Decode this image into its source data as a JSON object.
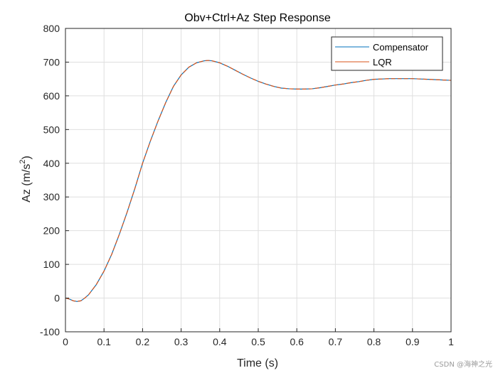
{
  "chart_data": {
    "type": "line",
    "title": "Obv+Ctrl+Az Step Response",
    "xlabel": "Time (s)",
    "ylabel_main": "Az (m/s",
    "ylabel_sup": "2",
    "ylabel_end": ")",
    "xlim": [
      0,
      1
    ],
    "ylim": [
      -100,
      800
    ],
    "xticks": [
      0,
      0.1,
      0.2,
      0.3,
      0.4,
      0.5,
      0.6,
      0.7,
      0.8,
      0.9,
      1
    ],
    "xtick_labels": [
      "0",
      "0.1",
      "0.2",
      "0.3",
      "0.4",
      "0.5",
      "0.6",
      "0.7",
      "0.8",
      "0.9",
      "1"
    ],
    "yticks": [
      -100,
      0,
      100,
      200,
      300,
      400,
      500,
      600,
      700,
      800
    ],
    "ytick_labels": [
      "-100",
      "0",
      "100",
      "200",
      "300",
      "400",
      "500",
      "600",
      "700",
      "800"
    ],
    "grid": true,
    "legend_position": "top-right",
    "x": [
      0,
      0.01,
      0.02,
      0.03,
      0.04,
      0.05,
      0.06,
      0.08,
      0.1,
      0.12,
      0.14,
      0.16,
      0.18,
      0.2,
      0.22,
      0.24,
      0.26,
      0.28,
      0.3,
      0.32,
      0.34,
      0.36,
      0.37,
      0.38,
      0.4,
      0.42,
      0.44,
      0.46,
      0.48,
      0.5,
      0.52,
      0.54,
      0.56,
      0.58,
      0.6,
      0.62,
      0.64,
      0.66,
      0.68,
      0.7,
      0.72,
      0.74,
      0.76,
      0.78,
      0.8,
      0.82,
      0.84,
      0.86,
      0.88,
      0.9,
      0.92,
      0.94,
      0.96,
      0.98,
      1.0
    ],
    "series": [
      {
        "name": "Compensator",
        "color": "#0072BD",
        "values": [
          0,
          -3,
          -8,
          -10,
          -8,
          0,
          10,
          40,
          80,
          130,
          190,
          255,
          325,
          400,
          465,
          525,
          580,
          628,
          662,
          685,
          698,
          704,
          705,
          704,
          698,
          688,
          676,
          664,
          653,
          643,
          635,
          628,
          623,
          621,
          620,
          620,
          621,
          624,
          628,
          632,
          635,
          639,
          642,
          646,
          649,
          650,
          651,
          651,
          651,
          651,
          650,
          649,
          648,
          647,
          646
        ]
      },
      {
        "name": "LQR",
        "color": "#D95319",
        "values": [
          0,
          -3,
          -8,
          -10,
          -8,
          0,
          10,
          40,
          80,
          130,
          190,
          255,
          325,
          400,
          465,
          525,
          580,
          628,
          662,
          685,
          698,
          704,
          705,
          704,
          698,
          688,
          676,
          664,
          653,
          643,
          635,
          628,
          623,
          621,
          620,
          620,
          621,
          624,
          628,
          632,
          635,
          639,
          642,
          646,
          649,
          650,
          651,
          651,
          651,
          651,
          650,
          649,
          648,
          647,
          646
        ]
      }
    ]
  },
  "watermark": "CSDN @海神之光"
}
